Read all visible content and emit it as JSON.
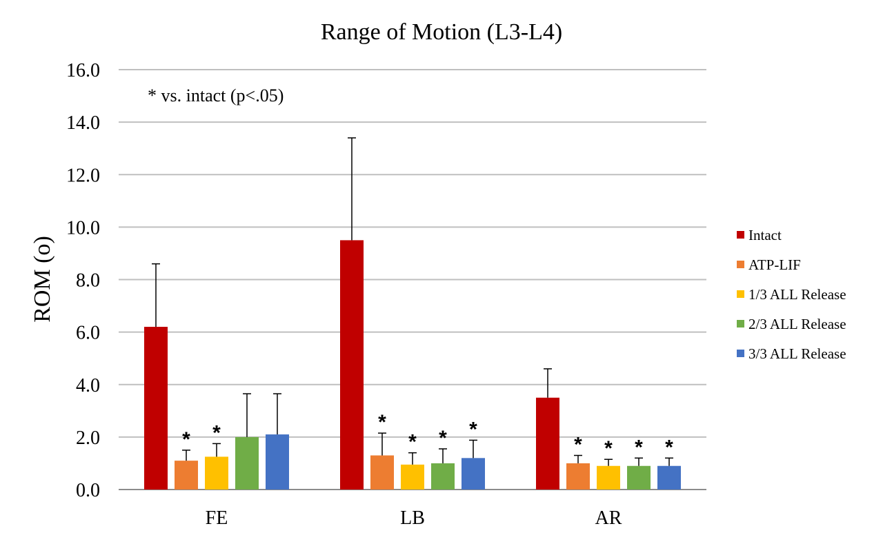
{
  "chart_data": {
    "type": "bar",
    "title": "Range of Motion (L3-L4)",
    "ylabel": "ROM (o)",
    "xlabel": "",
    "ylim": [
      0,
      16
    ],
    "yticks": [
      "0.0",
      "2.0",
      "4.0",
      "6.0",
      "8.0",
      "10.0",
      "12.0",
      "14.0",
      "16.0"
    ],
    "grid": true,
    "legend_position": "right",
    "annotation": "* vs. intact (p<.05)",
    "significance_marker": "*",
    "categories": [
      "FE",
      "LB",
      "AR"
    ],
    "series": [
      {
        "name": "Intact",
        "color": "#c00000",
        "values": [
          6.2,
          9.5,
          3.5
        ],
        "errors": [
          2.4,
          3.9,
          1.1
        ],
        "significant": [
          false,
          false,
          false
        ]
      },
      {
        "name": "ATP-LIF",
        "color": "#ed7d31",
        "values": [
          1.1,
          1.3,
          1.0
        ],
        "errors": [
          0.4,
          0.85,
          0.3
        ],
        "significant": [
          true,
          true,
          true
        ]
      },
      {
        "name": "1/3 ALL Release",
        "color": "#ffc000",
        "values": [
          1.25,
          0.95,
          0.9
        ],
        "errors": [
          0.5,
          0.45,
          0.25
        ],
        "significant": [
          true,
          true,
          true
        ]
      },
      {
        "name": "2/3 ALL Release",
        "color": "#70ad47",
        "values": [
          2.0,
          1.0,
          0.9
        ],
        "errors": [
          1.65,
          0.55,
          0.3
        ],
        "significant": [
          false,
          true,
          true
        ]
      },
      {
        "name": "3/3 ALL Release",
        "color": "#4472c4",
        "values": [
          2.1,
          1.2,
          0.9
        ],
        "errors": [
          1.55,
          0.68,
          0.3
        ],
        "significant": [
          false,
          true,
          true
        ]
      }
    ]
  }
}
